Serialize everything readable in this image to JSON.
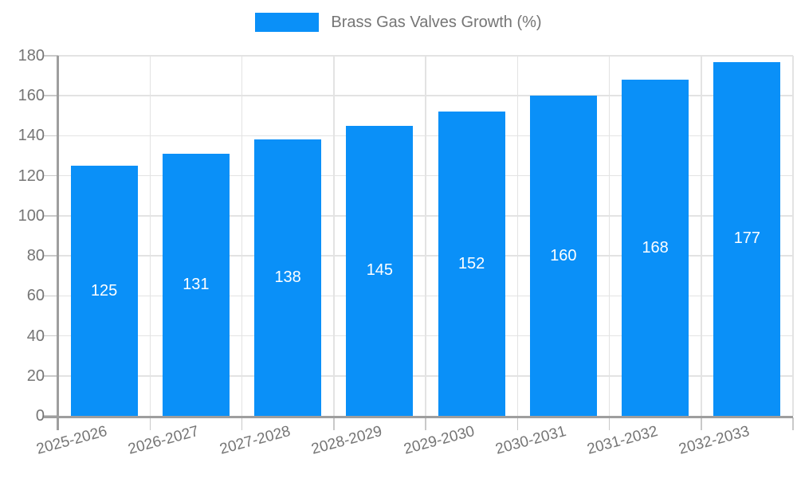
{
  "legend": {
    "label": "Brass Gas Valves Growth (%)"
  },
  "chart_data": {
    "type": "bar",
    "title": "Brass Gas Valves Growth (%)",
    "categories": [
      "2025-2026",
      "2026-2027",
      "2027-2028",
      "2028-2029",
      "2029-2030",
      "2030-2031",
      "2031-2032",
      "2032-2033"
    ],
    "values": [
      125,
      131,
      138,
      145,
      152,
      160,
      168,
      177
    ],
    "xlabel": "",
    "ylabel": "",
    "ylim": [
      0,
      180
    ],
    "ytick_step": 20,
    "yticks": [
      0,
      20,
      40,
      60,
      80,
      100,
      120,
      140,
      160,
      180
    ],
    "grid": true,
    "legend_position": "top",
    "value_labels": "inside-center",
    "x_label_rotation_deg": -15,
    "colors": {
      "bar": "#0a90f8",
      "value_label": "#ffffff",
      "axis_text": "#757575",
      "gridline": "#e3e3e3",
      "tick": "#c9c9c9",
      "axis_line": "#9e9e9e",
      "background": "#ffffff"
    }
  }
}
